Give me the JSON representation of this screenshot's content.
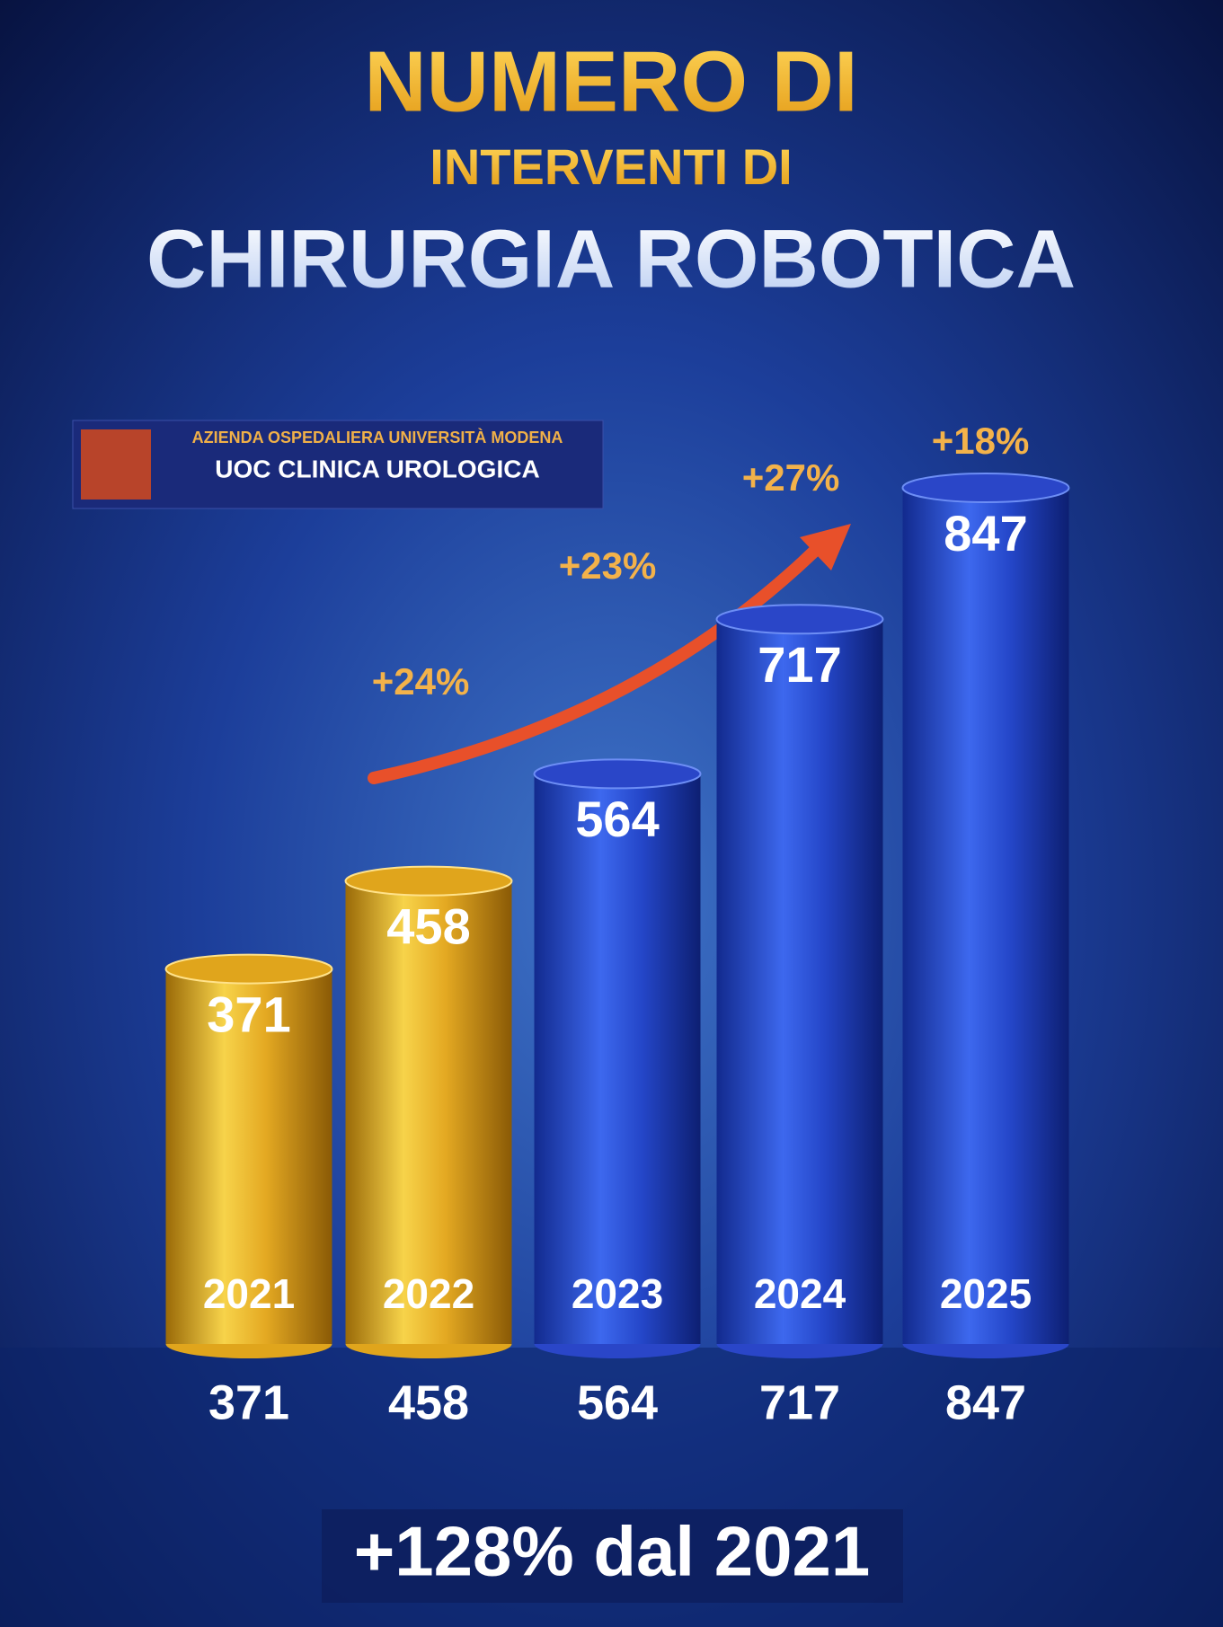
{
  "chart_data": {
    "type": "bar",
    "title": [
      "NUMERO DI",
      "INTERVENTI DI",
      "CHIRURGIA ROBOTICA"
    ],
    "badge": {
      "institution": "AZIENDA OSPEDALIERA UNIVERSITÀ MODENA",
      "unit": "UOC CLINICA UROLOGICA"
    },
    "categories": [
      "2021",
      "2022",
      "2023",
      "2024",
      "2025"
    ],
    "values": [
      371,
      458,
      564,
      717,
      847
    ],
    "colors": [
      "#e0a51c",
      "#e0a51c",
      "#2a46c8",
      "#2a46c8",
      "#2a46c8"
    ],
    "annotations": [
      "+24%",
      "+23%",
      "+27%",
      "+18%"
    ],
    "footer": "+128% dal 2021"
  }
}
